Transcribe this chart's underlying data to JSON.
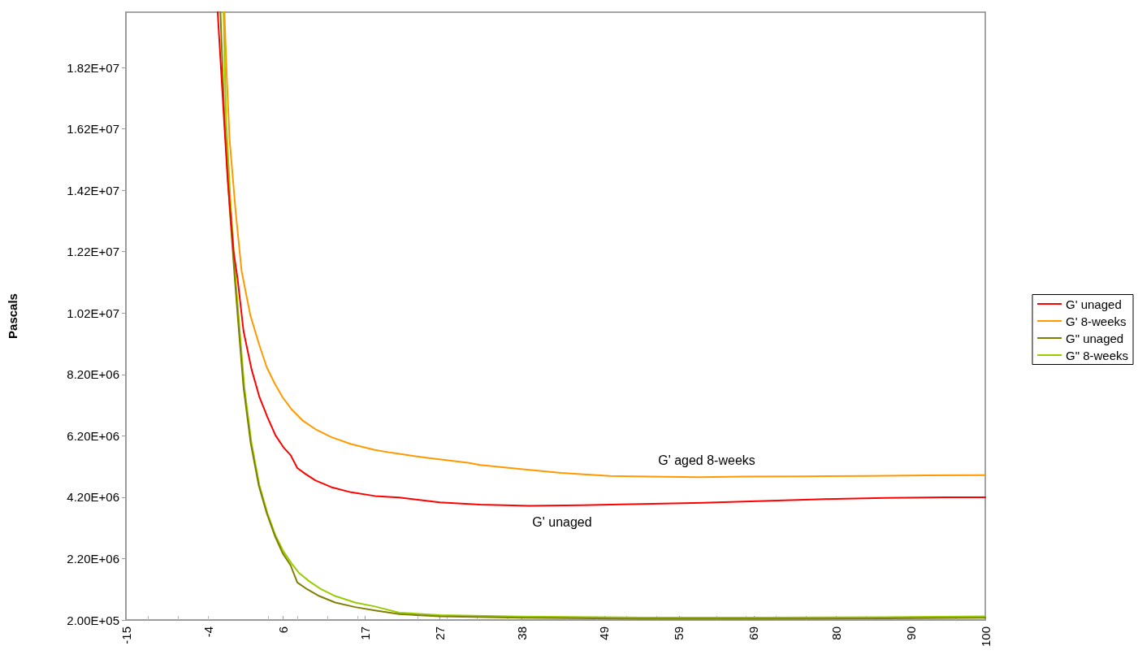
{
  "chart_data": {
    "type": "line",
    "ylabel": "Pascals",
    "xlim": [
      -15,
      100
    ],
    "xticks": [
      -15,
      -4,
      6,
      17,
      27,
      38,
      49,
      59,
      69,
      80,
      90,
      100
    ],
    "ylim": [
      200000,
      20000000
    ],
    "yticks": [
      {
        "value": 200000,
        "label": "2.00E+05"
      },
      {
        "value": 2200000,
        "label": "2.20E+06"
      },
      {
        "value": 4200000,
        "label": "4.20E+06"
      },
      {
        "value": 6200000,
        "label": "6.20E+06"
      },
      {
        "value": 8200000,
        "label": "8.20E+06"
      },
      {
        "value": 10200000,
        "label": "1.02E+07"
      },
      {
        "value": 12200000,
        "label": "1.22E+07"
      },
      {
        "value": 14200000,
        "label": "1.42E+07"
      },
      {
        "value": 16200000,
        "label": "1.62E+07"
      },
      {
        "value": 18200000,
        "label": "1.82E+07"
      }
    ],
    "grid": false,
    "legend": "right",
    "marker": "none",
    "line_style": "solid",
    "series": [
      {
        "name": "G' unaged",
        "color": "#ff0000",
        "x": [
          -2.72,
          -2.19,
          -1.39,
          -0.6,
          -0.05,
          0.74,
          1.81,
          2.87,
          3.94,
          5.01,
          6.07,
          7.04,
          7.94,
          9.01,
          10.34,
          12.47,
          15.13,
          18.33,
          21.58,
          27.0,
          32.42,
          38.93,
          45.97,
          54.1,
          62.23,
          70.36,
          78.5,
          86.6,
          94.75,
          100
        ],
        "values": [
          20000000,
          17820000,
          14560000,
          12220000,
          11310000,
          9610000,
          8370000,
          7460000,
          6810000,
          6220000,
          5830000,
          5570000,
          5150000,
          4960000,
          4750000,
          4530000,
          4360000,
          4240000,
          4190000,
          4030000,
          3960000,
          3920000,
          3940000,
          3980000,
          4020000,
          4080000,
          4140000,
          4180000,
          4200000,
          4200000
        ]
      },
      {
        "name": "G' 8-weeks",
        "color": "#ff9900",
        "x": [
          -1.82,
          -1.49,
          -1.13,
          -0.32,
          0.48,
          1.65,
          2.77,
          3.84,
          4.9,
          5.96,
          7.14,
          8.74,
          10.34,
          12.47,
          15.13,
          18.33,
          20.5,
          25.37,
          30.79,
          32.42,
          37.84,
          43.26,
          49.76,
          55.18,
          61.69,
          67.65,
          75.78,
          83.9,
          92.0,
          100
        ],
        "values": [
          20000000,
          17820000,
          15870000,
          13520000,
          11570000,
          10130000,
          9220000,
          8440000,
          7910000,
          7460000,
          7070000,
          6680000,
          6420000,
          6160000,
          5930000,
          5740000,
          5650000,
          5480000,
          5320000,
          5250000,
          5120000,
          4990000,
          4890000,
          4870000,
          4850000,
          4870000,
          4880000,
          4890000,
          4910000,
          4920000
        ]
      },
      {
        "name": "G\" unaged",
        "color": "#808000",
        "x": [
          -2.35,
          -1.82,
          -1.13,
          -0.43,
          0.21,
          0.74,
          1.7,
          2.77,
          3.84,
          4.9,
          5.96,
          7.04,
          7.94,
          9.27,
          10.87,
          13.01,
          15.67,
          18.33,
          21.58,
          27.0,
          37.84,
          54.1,
          70.36,
          86.6,
          100
        ],
        "values": [
          20000000,
          16520000,
          13650000,
          11310000,
          9350000,
          7780000,
          5960000,
          4590000,
          3680000,
          2960000,
          2380000,
          1980000,
          1420000,
          1200000,
          980000,
          770000,
          620000,
          510000,
          390000,
          320000,
          270000,
          240000,
          240000,
          250000,
          270000
        ]
      },
      {
        "name": "G\" 8-weeks",
        "color": "#99cc00",
        "x": [
          -1.93,
          -1.6,
          -0.96,
          -0.32,
          0.32,
          0.85,
          1.81,
          2.87,
          3.94,
          5.01,
          6.07,
          7.14,
          8.21,
          9.54,
          11.14,
          13.01,
          15.67,
          18.33,
          21.58,
          27.0,
          37.84,
          54.1,
          70.36,
          86.6,
          100
        ],
        "values": [
          20000000,
          16520000,
          13650000,
          11310000,
          9350000,
          7780000,
          5960000,
          4590000,
          3680000,
          2960000,
          2440000,
          2050000,
          1720000,
          1460000,
          1200000,
          980000,
          770000,
          640000,
          440000,
          360000,
          310000,
          280000,
          280000,
          290000,
          320000
        ]
      }
    ],
    "annotations": [
      "G' aged 8-weeks",
      "G' unaged"
    ]
  }
}
